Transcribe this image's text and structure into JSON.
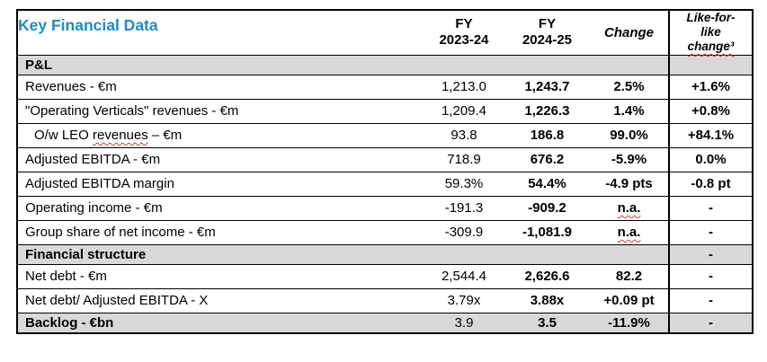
{
  "title": "Key Financial Data",
  "header": {
    "col_fy1": {
      "line1": "FY",
      "line2": "2023-24"
    },
    "col_fy2": {
      "line1": "FY",
      "line2": "2024-25"
    },
    "col_change": "Change",
    "col_lfl": {
      "line1": "Like-for-",
      "line2": "like",
      "line3": "change³",
      "misspelled": true
    }
  },
  "rows": [
    {
      "type": "section",
      "label": "P&L",
      "values": [
        "",
        "",
        "",
        ""
      ]
    },
    {
      "type": "data",
      "label": "Revenues - €m",
      "values": [
        "1,213.0",
        "1,243.7",
        "2.5%",
        "+1.6%"
      ]
    },
    {
      "type": "data",
      "label": "\"Operating Verticals\" revenues - €m",
      "values": [
        "1,209.4",
        "1,226.3",
        "1.4%",
        "+0.8%"
      ]
    },
    {
      "type": "data",
      "indent": true,
      "label_parts": {
        "pre": "O/w LEO ",
        "misspelled": "revenues",
        "post": " – €m"
      },
      "values": [
        "93.8",
        "186.8",
        "99.0%",
        "+84.1%"
      ]
    },
    {
      "type": "data",
      "label": "Adjusted EBITDA - €m",
      "values": [
        "718.9",
        "676.2",
        "-5.9%",
        "0.0%"
      ]
    },
    {
      "type": "data",
      "label": "Adjusted EBITDA margin",
      "values": [
        "59.3%",
        "54.4%",
        "-4.9 pts",
        "-0.8 pt"
      ]
    },
    {
      "type": "data",
      "label": "Operating income - €m",
      "values": [
        "-191.3",
        "-909.2",
        "n.a.",
        "-"
      ],
      "change_misspelled": true
    },
    {
      "type": "data",
      "label": "Group share of net income - €m",
      "values": [
        "-309.9",
        "-1,081.9",
        "n.a.",
        "-"
      ],
      "change_misspelled": true
    },
    {
      "type": "section",
      "label": "Financial structure",
      "values": [
        "",
        "",
        "",
        "-"
      ]
    },
    {
      "type": "data",
      "label": "Net debt - €m",
      "values": [
        "2,544.4",
        "2,626.6",
        "82.2",
        "-"
      ]
    },
    {
      "type": "data",
      "label": "Net debt/ Adjusted EBITDA - X",
      "values": [
        "3.79x",
        "3.88x",
        "+0.09 pt",
        "-"
      ]
    },
    {
      "type": "section-data",
      "label": "Backlog - €bn",
      "values": [
        "3.9",
        "3.5",
        "-11.9%",
        "-"
      ]
    }
  ],
  "colors": {
    "accent_blue": "#1e8bc8",
    "section_gray": "#d9d9d9",
    "squiggle_red": "#d23a2e",
    "border_black": "#000000"
  }
}
